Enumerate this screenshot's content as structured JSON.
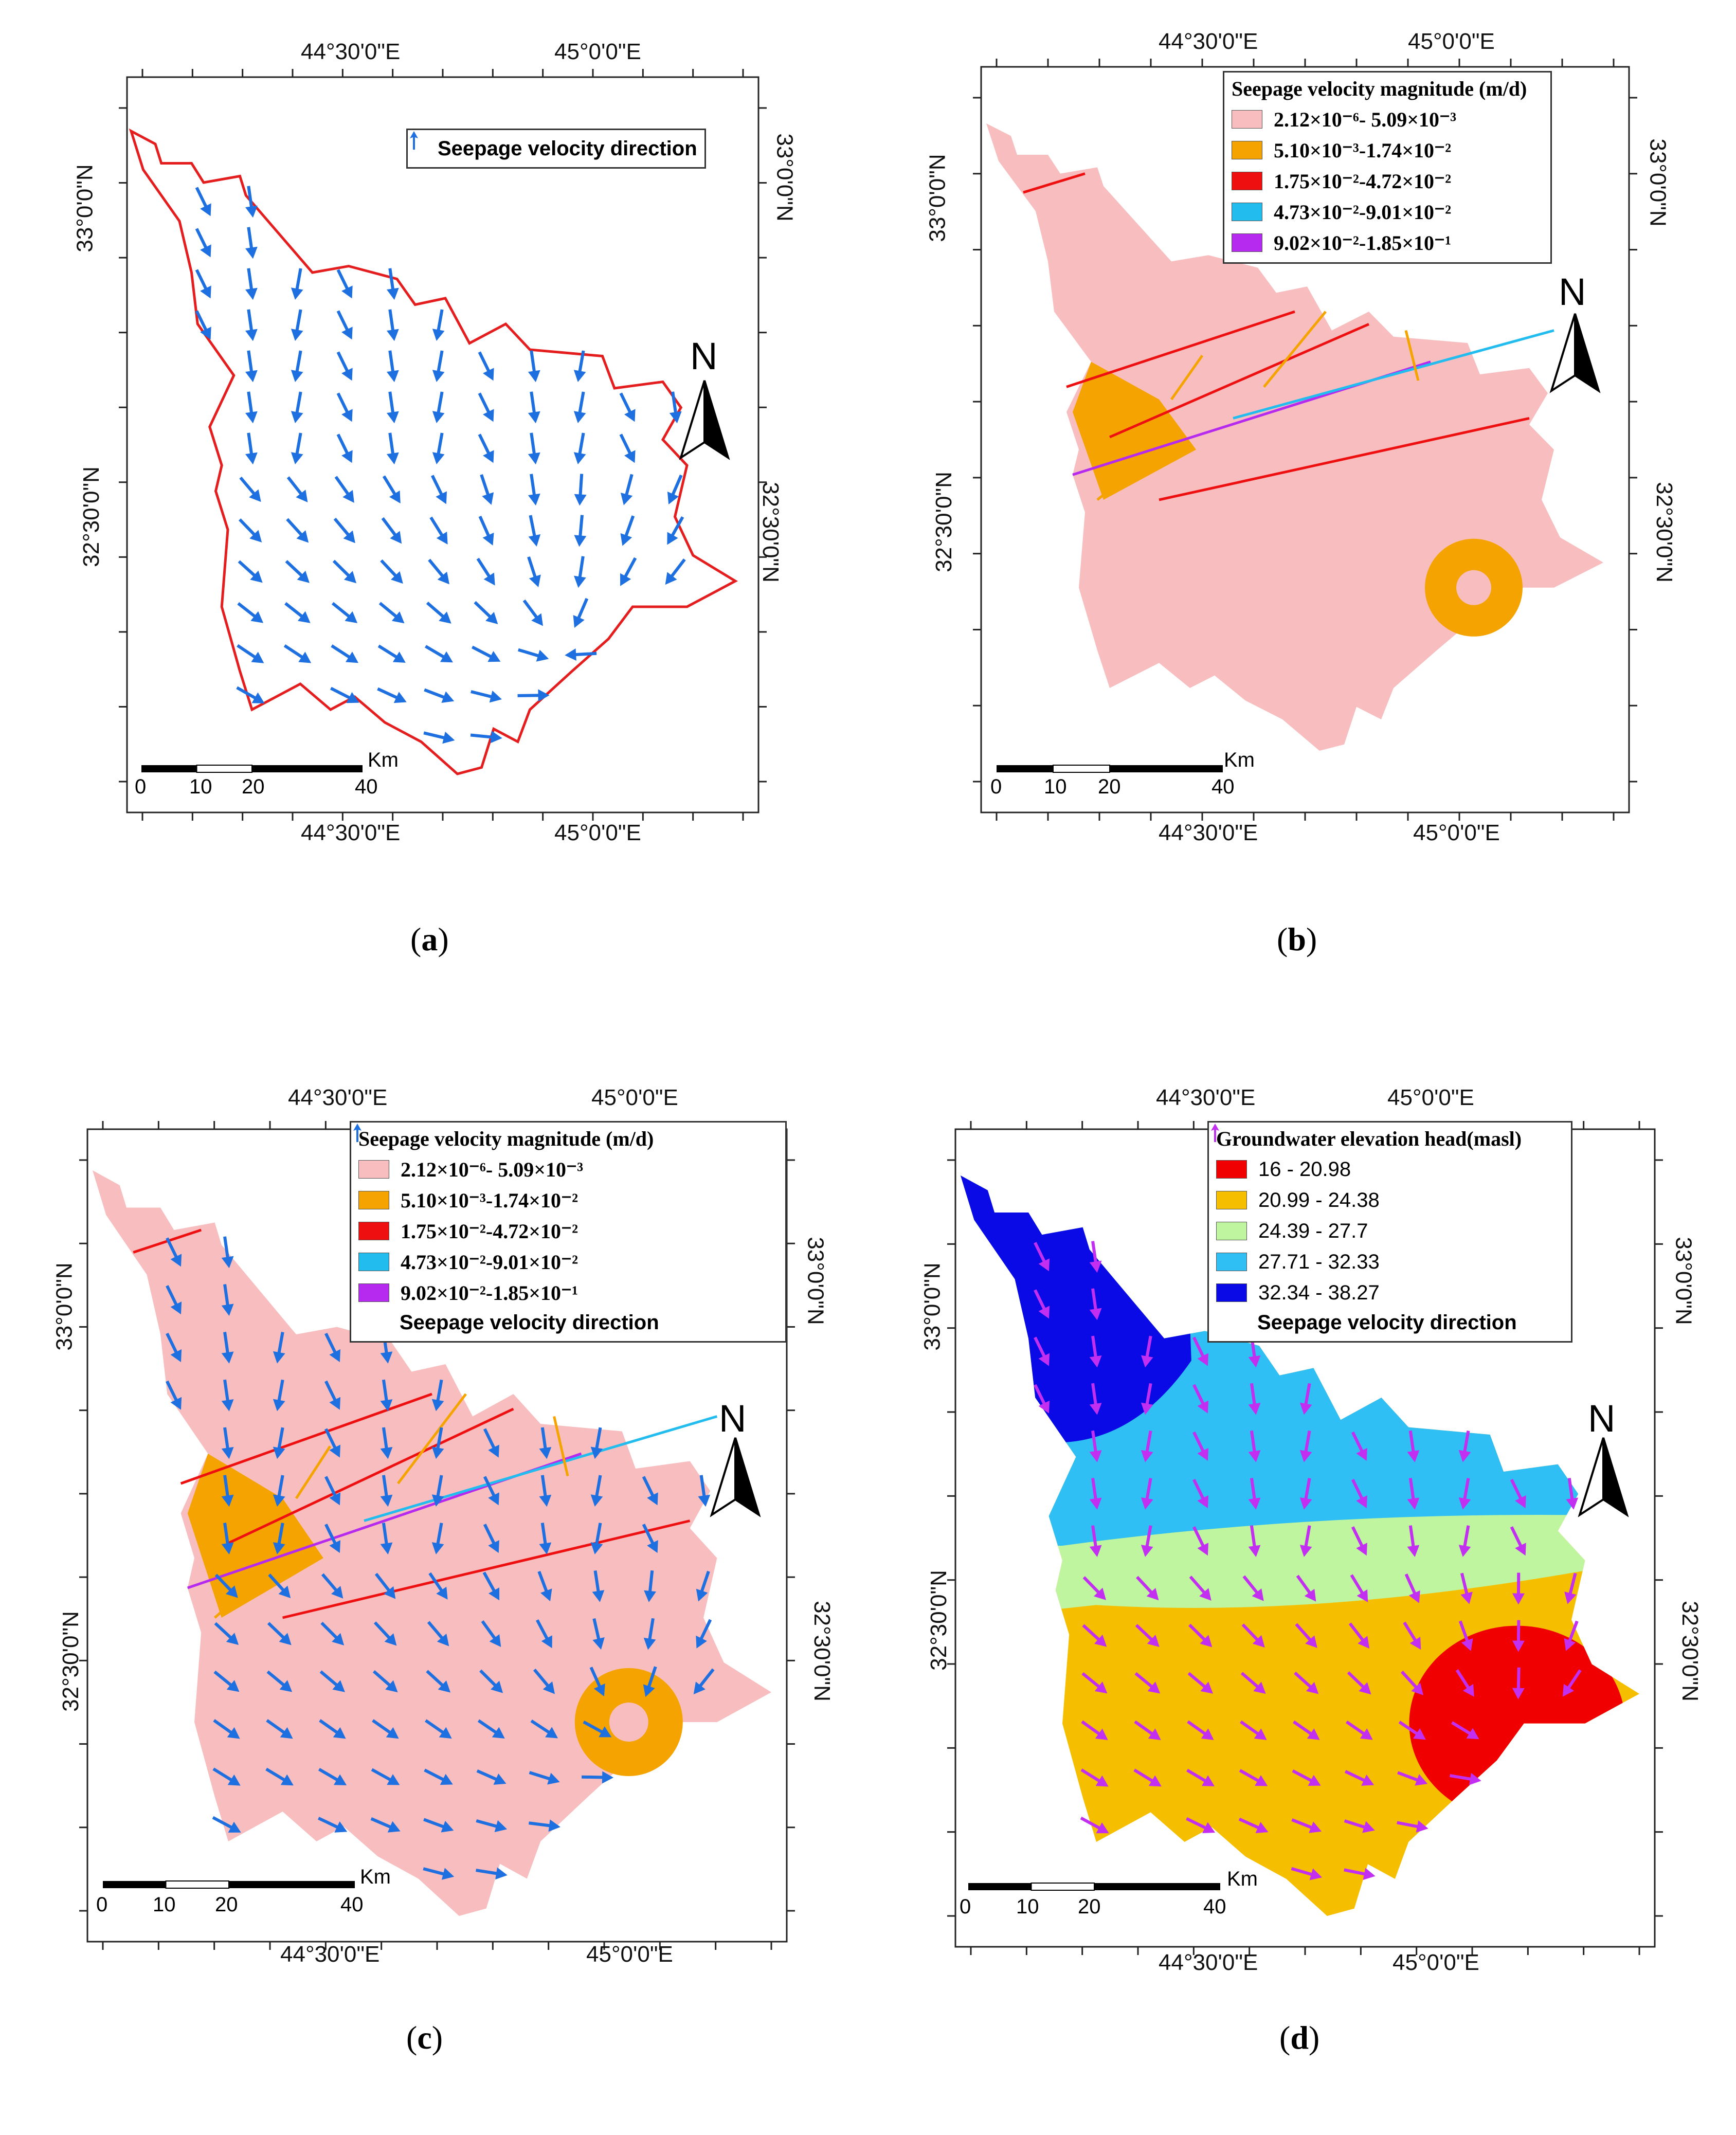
{
  "coords": {
    "lon_a": "44°30'0\"E",
    "lon_b": "45°0'0\"E",
    "lat_a": "33°0'0\"N",
    "lat_b": "32°30'0\"N"
  },
  "north_label": "N",
  "scale": {
    "unit": "Km",
    "ticks": [
      "0",
      "10",
      "20",
      "40"
    ]
  },
  "legend_velocity": {
    "title": "Seepage velocity magnitude (m/d)",
    "classes": [
      {
        "label": "2.12×10⁻⁶- 5.09×10⁻³",
        "color": "#F8BDBE"
      },
      {
        "label": "5.10×10⁻³-1.74×10⁻²",
        "color": "#F5A300"
      },
      {
        "label": "1.75×10⁻²-4.72×10⁻²",
        "color": "#EE1010"
      },
      {
        "label": "4.73×10⁻²-9.01×10⁻²",
        "color": "#22BDEE"
      },
      {
        "label": "9.02×10⁻²-1.85×10⁻¹",
        "color": "#B52AEE"
      }
    ]
  },
  "legend_head": {
    "title": "Groundwater elevation head(masl)",
    "classes": [
      {
        "label": "16 - 20.98",
        "color": "#F00000"
      },
      {
        "label": "20.99 - 24.38",
        "color": "#F5BF00"
      },
      {
        "label": "24.39 - 27.7",
        "color": "#BFF59E"
      },
      {
        "label": "27.71 - 32.33",
        "color": "#2FBFF5"
      },
      {
        "label": "32.34 - 38.27",
        "color": "#0A0AE6"
      }
    ]
  },
  "direction_label": "Seepage velocity direction",
  "colors": {
    "arrow_blue": "#1E6FE0",
    "arrow_purple": "#C22FF0",
    "boundary_red": "#E41E1E"
  },
  "captions": {
    "a": "a",
    "b": "b",
    "c": "c",
    "d": "d"
  }
}
